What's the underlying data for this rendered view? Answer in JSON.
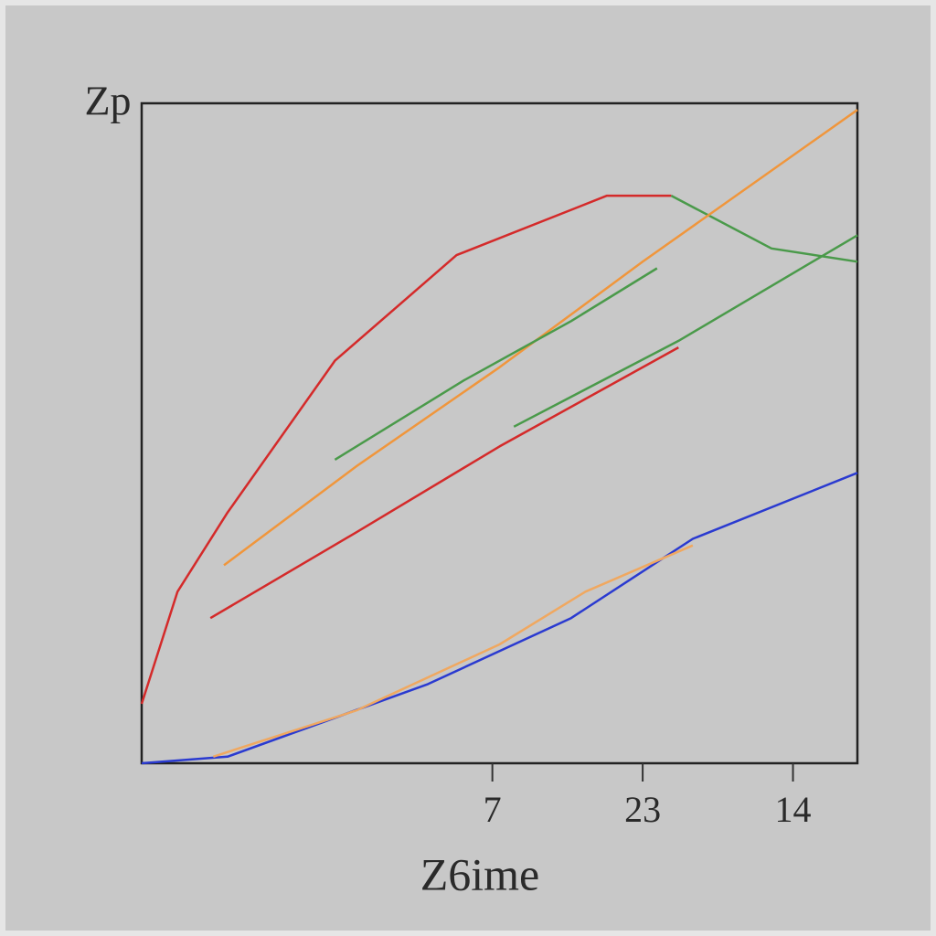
{
  "chart_data": {
    "type": "line",
    "y_label": "Zp",
    "x_label": "Z6ime",
    "xlim": [
      0,
      100
    ],
    "ylim": [
      0,
      100
    ],
    "xticks": [
      {
        "value": 49,
        "label": "7"
      },
      {
        "value": 70,
        "label": "23"
      },
      {
        "value": 91,
        "label": "14"
      }
    ],
    "series": [
      {
        "color": "#d42a2a",
        "x": [
          0,
          5,
          12,
          27,
          44,
          65,
          74
        ],
        "values": [
          9,
          26,
          38,
          61,
          77,
          86,
          86
        ]
      },
      {
        "color": "#4a9a4a",
        "x": [
          74,
          88,
          100
        ],
        "values": [
          86,
          78,
          76
        ]
      },
      {
        "color": "#f0963c",
        "x": [
          11.5,
          30,
          50,
          70,
          100
        ],
        "values": [
          30,
          45,
          60,
          76,
          99
        ]
      },
      {
        "color": "#d42a2a",
        "x": [
          9.6,
          30,
          50,
          75
        ],
        "values": [
          22,
          35,
          48,
          63
        ]
      },
      {
        "color": "#4a9a4a",
        "x": [
          52,
          75,
          100
        ],
        "values": [
          51,
          64,
          80
        ]
      },
      {
        "color": "#4a9a4a",
        "x": [
          27,
          45,
          60,
          72
        ],
        "values": [
          46,
          58,
          67,
          75
        ]
      },
      {
        "color": "#2a3ad0",
        "x": [
          0,
          12,
          40,
          60,
          77,
          100
        ],
        "values": [
          0,
          1,
          12,
          22,
          34,
          44
        ]
      },
      {
        "color": "#f0a860",
        "x": [
          10,
          30,
          50,
          62,
          77
        ],
        "values": [
          1,
          8,
          18,
          26,
          33
        ]
      }
    ]
  }
}
